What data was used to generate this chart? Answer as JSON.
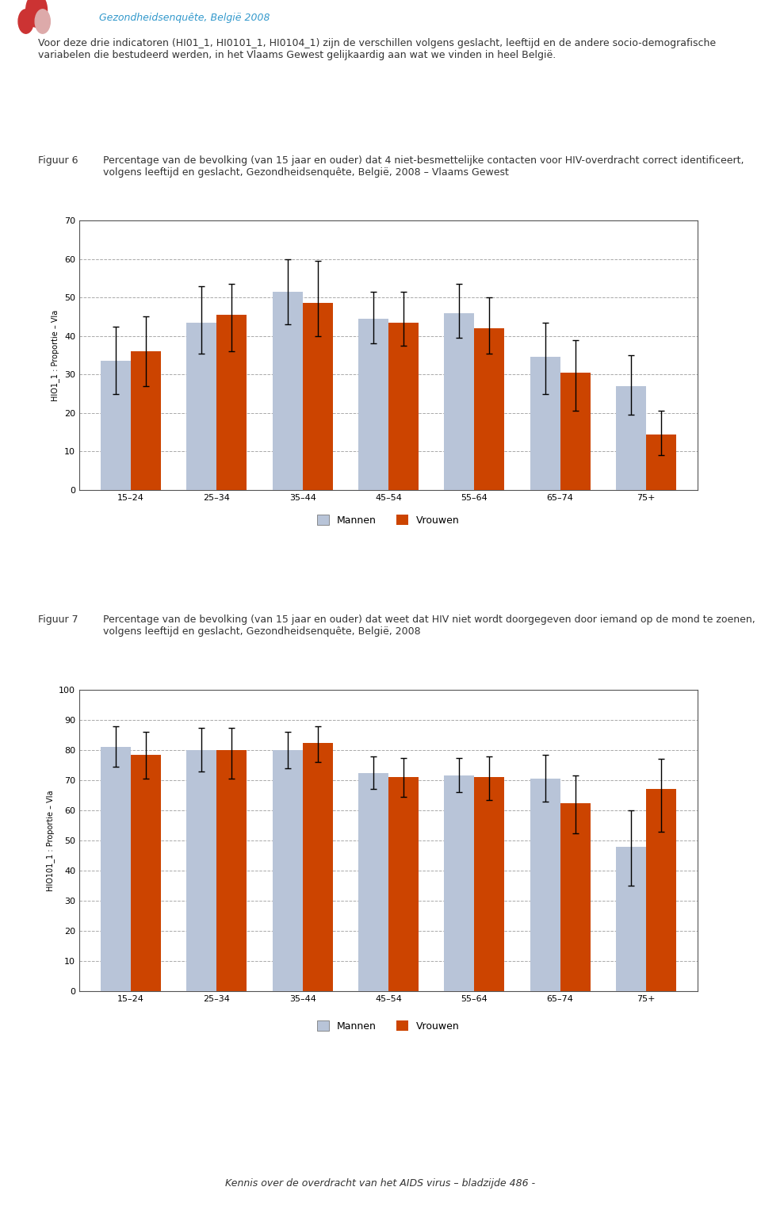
{
  "header_text": "Gezondheidsenquête, België 2008",
  "intro_text": "Voor deze drie indicatoren (HI01_1, HI0101_1, HI0104_1) zijn de verschillen volgens geslacht, leeftijd en de andere socio-demografische variabelen die bestudeerd werden, in het Vlaams Gewest gelijkaardig aan wat we vinden in heel België.",
  "footer_text": "Kennis over de overdracht van het AIDS virus – bladzijde 486 -",
  "fig1_label": "Figuur 6",
  "fig1_title": "Percentage van de bevolking (van 15 jaar en ouder) dat 4 niet-besmettelijke contacten voor HIV-overdracht correct identificeert, volgens leeftijd en geslacht, Gezondheidsenquête, België, 2008 – Vlaams Gewest",
  "fig1_ylabel": "HIO1_1 : Proportie – Vla",
  "fig1_ylim": [
    0,
    70
  ],
  "fig1_yticks": [
    0,
    10,
    20,
    30,
    40,
    50,
    60,
    70
  ],
  "fig1_mannen": [
    33.5,
    43.5,
    51.5,
    44.5,
    46.0,
    34.5,
    27.0
  ],
  "fig1_vrouwen": [
    36.0,
    45.5,
    48.5,
    43.5,
    42.0,
    30.5,
    14.5
  ],
  "fig1_mannen_err_lo": [
    8.5,
    8.0,
    8.5,
    6.5,
    6.5,
    9.5,
    7.5
  ],
  "fig1_mannen_err_hi": [
    9.0,
    9.5,
    8.5,
    7.0,
    7.5,
    9.0,
    8.0
  ],
  "fig1_vrouwen_err_lo": [
    9.0,
    9.5,
    8.5,
    6.0,
    6.5,
    10.0,
    5.5
  ],
  "fig1_vrouwen_err_hi": [
    9.0,
    8.0,
    11.0,
    8.0,
    8.0,
    8.5,
    6.0
  ],
  "fig2_label": "Figuur 7",
  "fig2_title": "Percentage van de bevolking (van 15 jaar en ouder) dat weet dat HIV niet wordt doorgegeven door iemand op de mond te zoenen, volgens leeftijd en geslacht, Gezondheidsenquête, België, 2008",
  "fig2_ylabel": "HIO101_1 : Proportie – Vla",
  "fig2_ylim": [
    0,
    100
  ],
  "fig2_yticks": [
    0,
    10,
    20,
    30,
    40,
    50,
    60,
    70,
    80,
    90,
    100
  ],
  "fig2_mannen": [
    81.0,
    80.0,
    80.0,
    72.5,
    71.5,
    70.5,
    48.0
  ],
  "fig2_vrouwen": [
    78.5,
    80.0,
    82.5,
    71.0,
    71.0,
    62.5,
    67.0
  ],
  "fig2_mannen_err_lo": [
    6.5,
    7.0,
    6.0,
    5.5,
    5.5,
    7.5,
    13.0
  ],
  "fig2_mannen_err_hi": [
    7.0,
    7.5,
    6.0,
    5.5,
    6.0,
    8.0,
    12.0
  ],
  "fig2_vrouwen_err_lo": [
    8.0,
    9.5,
    6.5,
    6.5,
    7.5,
    10.0,
    14.0
  ],
  "fig2_vrouwen_err_hi": [
    7.5,
    7.5,
    5.5,
    6.5,
    7.0,
    9.0,
    10.0
  ],
  "age_groups": [
    "15–24",
    "25–34",
    "35–44",
    "45–54",
    "55–64",
    "65–74",
    "75+"
  ],
  "color_mannen": "#b8c4d8",
  "color_vrouwen": "#cc4400",
  "bar_width": 0.35,
  "legend_mannen": "Mannen",
  "legend_vrouwen": "Vrouwen",
  "background_color": "#ffffff",
  "plot_bg_color": "#ffffff",
  "grid_color": "#aaaaaa",
  "box_color": "#555555"
}
